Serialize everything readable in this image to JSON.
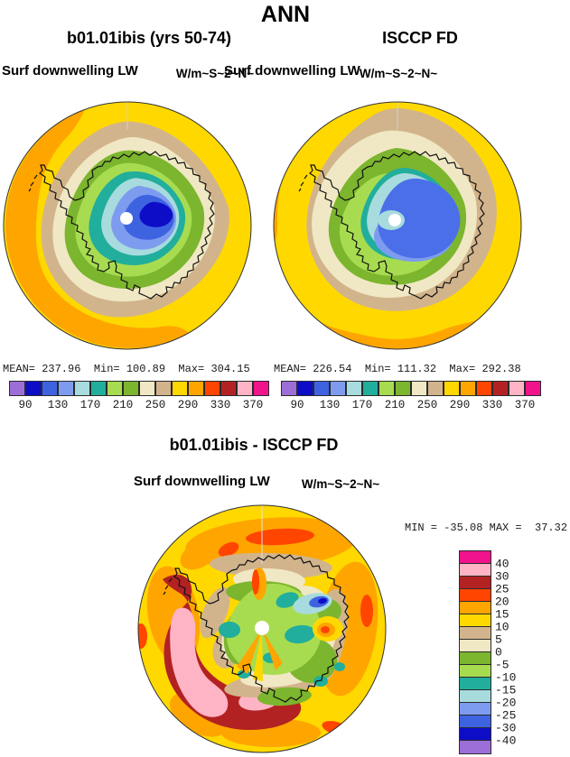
{
  "figure_title": "ANN",
  "panels": {
    "model": {
      "subtitle": "b01.01ibis (yrs 50-74)",
      "field": "Surf downwelling LW",
      "units": "W/m~S~2~N~",
      "stats": "MEAN= 237.96  Min= 100.89  Max= 304.15",
      "mean": 237.96,
      "min": 100.89,
      "max": 304.15
    },
    "obs": {
      "subtitle": "ISCCP FD",
      "field": "Surf downwelling LW",
      "units": "W/m~S~2~N~",
      "stats": "MEAN= 226.54  Min= 111.32  Max= 292.38",
      "mean": 226.54,
      "min": 111.32,
      "max": 292.38
    },
    "diff": {
      "subtitle": "b01.01ibis - ISCCP FD",
      "field": "Surf downwelling LW",
      "units": "W/m~S~2~N~",
      "stats": "MIN = -35.08 MAX =  37.32",
      "min": -35.08,
      "max": 37.32
    }
  },
  "colorbar_absolute": {
    "orientation": "horizontal",
    "tick_labels": [
      "90",
      "130",
      "170",
      "210",
      "250",
      "290",
      "330",
      "370"
    ],
    "colors": [
      "#9C6FD8",
      "#0D0DC8",
      "#3E63E0",
      "#7E9CEF",
      "#A8DBDD",
      "#21AE9C",
      "#A8DC50",
      "#7CB52E",
      "#F0E8C4",
      "#D2B48C",
      "#FFD800",
      "#FFA500",
      "#FF4500",
      "#B22222",
      "#FFB4C6",
      "#F0138C"
    ]
  },
  "colorbar_difference": {
    "orientation": "vertical",
    "tick_labels": [
      "40",
      "30",
      "25",
      "20",
      "15",
      "10",
      "5",
      "0",
      "-5",
      "-10",
      "-15",
      "-20",
      "-25",
      "-30",
      "-40"
    ],
    "colors_top_to_bottom": [
      "#F0138C",
      "#FFB4C6",
      "#B22222",
      "#FF4500",
      "#FFA500",
      "#FFD800",
      "#D2B48C",
      "#F0E8C4",
      "#7CB52E",
      "#A8DC50",
      "#21AE9C",
      "#A8DBDD",
      "#7E9CEF",
      "#3E63E0",
      "#0D0DC8",
      "#9C6FD8"
    ]
  },
  "chart_data": [
    {
      "type": "heatmap",
      "subtype": "filled-contour-south-polar-map",
      "title": "b01.01ibis (yrs 50-74)",
      "variable": "Surf downwelling LW",
      "units": "W/m~S~2~N~",
      "region": "Antarctica, south polar stereographic",
      "stats": {
        "mean": 237.96,
        "min": 100.89,
        "max": 304.15
      },
      "contour_levels": [
        90,
        110,
        130,
        150,
        170,
        190,
        210,
        230,
        250,
        270,
        290,
        310,
        330,
        350,
        370
      ],
      "palette": [
        "#9C6FD8",
        "#0D0DC8",
        "#3E63E0",
        "#7E9CEF",
        "#A8DBDD",
        "#21AE9C",
        "#A8DC50",
        "#7CB52E",
        "#F0E8C4",
        "#D2B48C",
        "#FFD800",
        "#FFA500",
        "#FF4500",
        "#B22222",
        "#FFB4C6",
        "#F0138C"
      ],
      "legend_position": "bottom",
      "pattern": "low values (blues, ~100-170) over interior East Antarctica, rising through teal/green near the coast to yellow/orange (~250-300) over the surrounding Southern Ocean"
    },
    {
      "type": "heatmap",
      "subtype": "filled-contour-south-polar-map",
      "title": "ISCCP FD",
      "variable": "Surf downwelling LW",
      "units": "W/m~S~2~N~",
      "region": "Antarctica, south polar stereographic",
      "stats": {
        "mean": 226.54,
        "min": 111.32,
        "max": 292.38
      },
      "contour_levels": [
        90,
        110,
        130,
        150,
        170,
        190,
        210,
        230,
        250,
        270,
        290,
        310,
        330,
        350,
        370
      ],
      "palette": [
        "#9C6FD8",
        "#0D0DC8",
        "#3E63E0",
        "#7E9CEF",
        "#A8DBDD",
        "#21AE9C",
        "#A8DC50",
        "#7CB52E",
        "#F0E8C4",
        "#D2B48C",
        "#FFD800",
        "#FFA500",
        "#FF4500",
        "#B22222",
        "#FFB4C6",
        "#F0138C"
      ],
      "legend_position": "bottom",
      "pattern": "medium-blue interior (~150-190) with wide tan/cream ocean ring and yellow outer ring; no deep-navy core"
    },
    {
      "type": "heatmap",
      "subtype": "filled-contour-south-polar-map",
      "title": "b01.01ibis - ISCCP FD",
      "variable": "Surf downwelling LW",
      "units": "W/m~S~2~N~",
      "region": "Antarctica, south polar stereographic",
      "stats": {
        "min": -35.08,
        "max": 37.32
      },
      "contour_levels": [
        -40,
        -30,
        -25,
        -20,
        -15,
        -10,
        -5,
        0,
        5,
        10,
        15,
        20,
        25,
        30,
        40
      ],
      "palette_top_to_bottom": [
        "#F0138C",
        "#FFB4C6",
        "#B22222",
        "#FF4500",
        "#FFA500",
        "#FFD800",
        "#D2B48C",
        "#F0E8C4",
        "#7CB52E",
        "#A8DC50",
        "#21AE9C",
        "#A8DBDD",
        "#7E9CEF",
        "#3E63E0",
        "#0D0DC8",
        "#9C6FD8"
      ],
      "legend_position": "right",
      "pattern": "positive bias (+10 to +30, orange/red/pink) over the ocean, strongest west of the Antarctic Peninsula; near-zero to negative patches (green/teal/blue, 0 to -25) over the continent"
    }
  ]
}
